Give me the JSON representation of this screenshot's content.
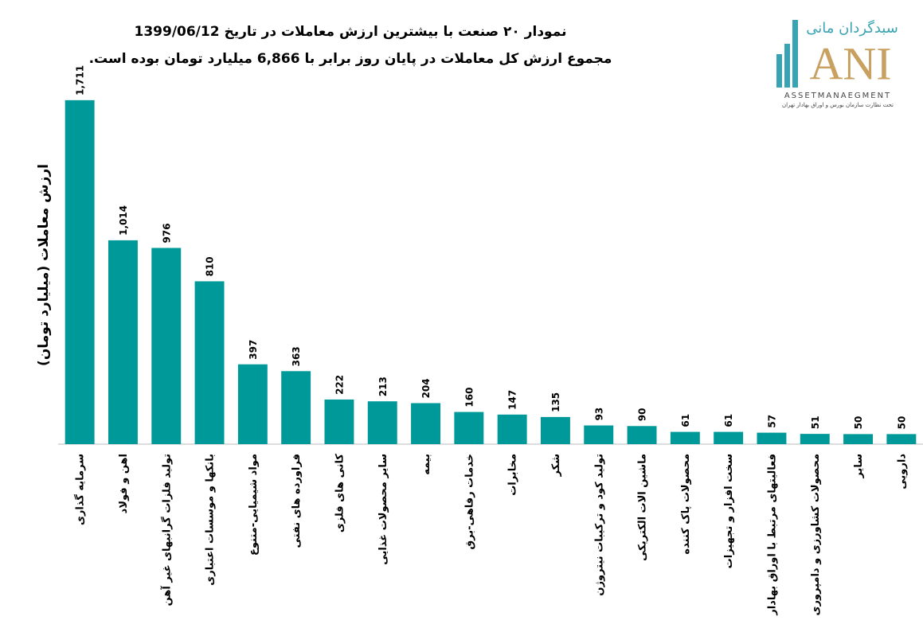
{
  "chart_data": {
    "type": "bar",
    "title": "نمودار ۲۰ صنعت با بیشترین ارزش معاملات در تاریخ 1399/06/12",
    "subtitle": "مجموع ارزش کل معاملات در پایان روز برابر با 6,866 میلیارد تومان بوده است.",
    "y_label": "ارزش معاملات (میلیارد تومان)",
    "categories": [
      "سرمایه گذاری",
      "اهن و فولاد",
      "تولید فلزات گرانبهای غیر آهن",
      "بانکها و موسسات اعتباری",
      "مواد شیمیایی-متنوع",
      "فراورده های نفتی",
      "کانی های فلزی",
      "سایر محصولات غذایی",
      "بیمه",
      "خدمات رفاهی-برق",
      "مخابرات",
      "شکر",
      "تولید کود و ترکیبات نیتروژن",
      "ماشین الات الکتریکی",
      "محصولات پاک کننده",
      "سخت افزار و تجهیزات",
      "فعالیتهای مرتبط با اوراق بهادار",
      "محصولات کشاورزی و دامپروری",
      "سایر",
      "دارویی"
    ],
    "values": [
      1711,
      1014,
      976,
      810,
      397,
      363,
      222,
      213,
      204,
      160,
      147,
      135,
      93,
      90,
      61,
      61,
      57,
      51,
      50,
      50
    ],
    "value_labels": [
      "1,711",
      "1,014",
      "976",
      "810",
      "397",
      "363",
      "222",
      "213",
      "204",
      "160",
      "147",
      "135",
      "93",
      "90",
      "61",
      "61",
      "57",
      "51",
      "50",
      "50"
    ],
    "color": "#009999",
    "ylim": [
      0,
      1750
    ]
  },
  "logo": {
    "name": "سبدگردان مانی",
    "mark": "ANI",
    "english": "ASSETMANAEGMENT",
    "tagline": "تحت نظارت سازمان بورس و اوراق بهادار تهران"
  }
}
